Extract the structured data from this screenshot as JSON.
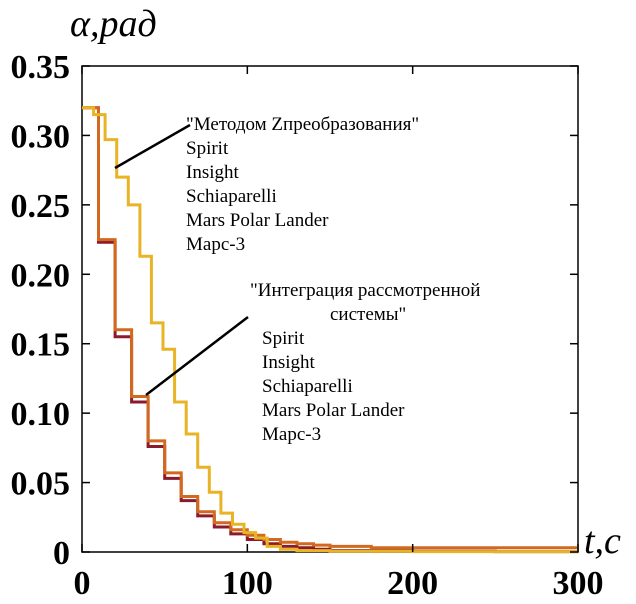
{
  "chart_data": {
    "type": "line",
    "title": "",
    "xlabel": "t,c",
    "ylabel": "α,рад",
    "xlim": [
      0,
      300
    ],
    "ylim": [
      0,
      0.35
    ],
    "xticks": [
      0,
      100,
      200,
      300
    ],
    "xtick_labels": [
      "0",
      "100",
      "200",
      "300"
    ],
    "yticks": [
      0,
      0.05,
      0.1,
      0.15,
      0.2,
      0.25,
      0.3,
      0.35
    ],
    "ytick_labels": [
      "0",
      "0.05",
      "0.10",
      "0.15",
      "0.20",
      "0.25",
      "0.30",
      "0.35"
    ],
    "grid": false,
    "step": true,
    "series": [
      {
        "color": "#8b1a2c",
        "x": [
          0,
          10,
          20,
          30,
          40,
          50,
          60,
          70,
          80,
          90,
          100,
          110,
          120,
          130,
          140,
          150,
          175,
          200,
          250,
          300
        ],
        "y": [
          0.32,
          0.223,
          0.155,
          0.108,
          0.076,
          0.053,
          0.037,
          0.026,
          0.018,
          0.013,
          0.009,
          0.006,
          0.004,
          0.003,
          0.002,
          0.001,
          0.001,
          0.0005,
          0.0003,
          0.0003
        ]
      },
      {
        "color": "#d2691e",
        "x": [
          0,
          10,
          20,
          30,
          40,
          50,
          60,
          70,
          80,
          90,
          100,
          110,
          120,
          130,
          140,
          150,
          175,
          200,
          250,
          300
        ],
        "y": [
          0.32,
          0.225,
          0.16,
          0.112,
          0.08,
          0.057,
          0.04,
          0.029,
          0.021,
          0.016,
          0.012,
          0.009,
          0.007,
          0.006,
          0.005,
          0.004,
          0.003,
          0.003,
          0.003,
          0.003
        ]
      },
      {
        "color": "#e8b426",
        "x": [
          0,
          7,
          14,
          21,
          28,
          35,
          42,
          49,
          56,
          63,
          70,
          77,
          84,
          91,
          98,
          105,
          112,
          120,
          130,
          150,
          200,
          300
        ],
        "y": [
          0.32,
          0.315,
          0.297,
          0.27,
          0.25,
          0.213,
          0.165,
          0.146,
          0.108,
          0.085,
          0.061,
          0.043,
          0.028,
          0.02,
          0.014,
          0.01,
          0.004,
          0.002,
          0.001,
          0.0005,
          0.0003,
          0.0003
        ]
      }
    ],
    "annotations": [
      {
        "group": "zpreobr",
        "lines": [
          "\"Методом Zпреобразования\"",
          "Spirit",
          "Insight",
          "Schiaparelli",
          "Mars Polar Lander",
          "Марс-3"
        ]
      },
      {
        "group": "integr",
        "lines": [
          "\"Интеграция рассмотренной",
          "системы\"",
          "Spirit",
          "Insight",
          "Schiaparelli",
          "Mars Polar Lander",
          "Марс-3"
        ]
      }
    ]
  }
}
